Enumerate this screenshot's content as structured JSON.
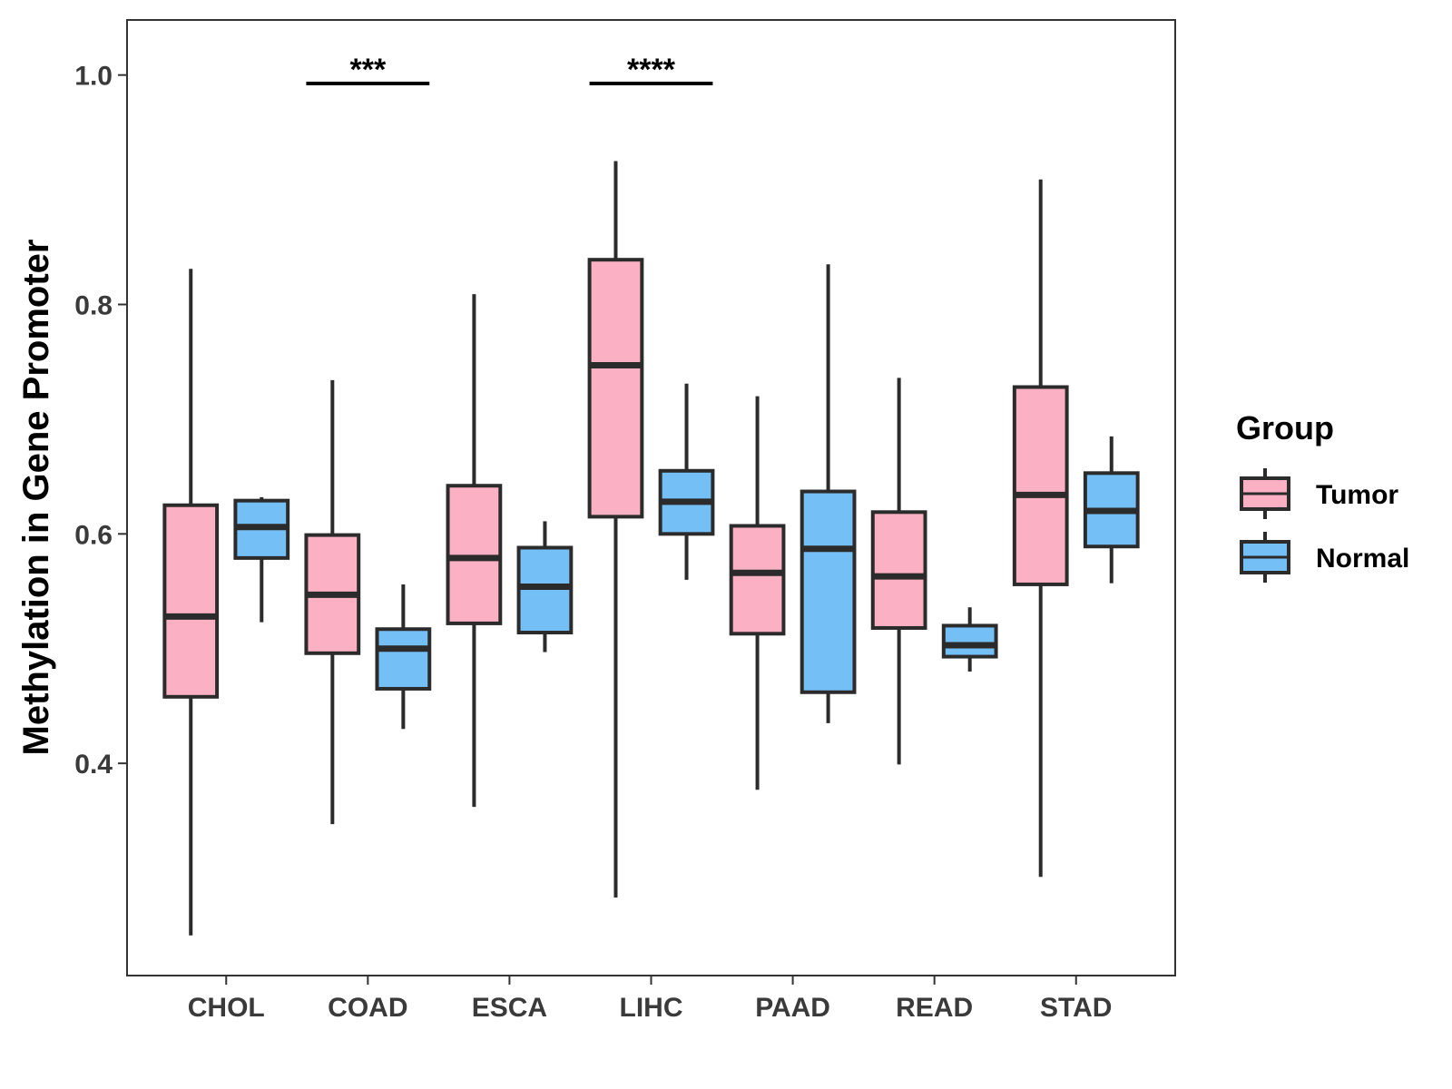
{
  "chart_data": {
    "type": "boxplot",
    "title": "",
    "xlabel": "",
    "ylabel": "Methylation in Gene Promoter",
    "ylim": [
      0.215,
      1.048
    ],
    "yticks": [
      0.4,
      0.6,
      0.8,
      1.0
    ],
    "ytick_labels": [
      "0.4",
      "0.6",
      "0.8",
      "1.0"
    ],
    "categories": [
      "CHOL",
      "COAD",
      "ESCA",
      "LIHC",
      "PAAD",
      "READ",
      "STAD"
    ],
    "grid": false,
    "legend": {
      "title": "Group",
      "position": "right",
      "entries": [
        {
          "name": "Tumor",
          "color": "#fbb1c3"
        },
        {
          "name": "Normal",
          "color": "#75bff7"
        }
      ]
    },
    "series": [
      {
        "name": "Tumor",
        "color": "#fbb1c3",
        "boxes": [
          {
            "min": 0.25,
            "q1": 0.458,
            "median": 0.528,
            "q3": 0.625,
            "max": 0.831
          },
          {
            "min": 0.347,
            "q1": 0.496,
            "median": 0.547,
            "q3": 0.599,
            "max": 0.734
          },
          {
            "min": 0.362,
            "q1": 0.522,
            "median": 0.579,
            "q3": 0.642,
            "max": 0.809
          },
          {
            "min": 0.283,
            "q1": 0.615,
            "median": 0.747,
            "q3": 0.839,
            "max": 0.925
          },
          {
            "min": 0.377,
            "q1": 0.513,
            "median": 0.566,
            "q3": 0.607,
            "max": 0.72
          },
          {
            "min": 0.399,
            "q1": 0.518,
            "median": 0.563,
            "q3": 0.619,
            "max": 0.736
          },
          {
            "min": 0.301,
            "q1": 0.556,
            "median": 0.634,
            "q3": 0.728,
            "max": 0.909
          }
        ]
      },
      {
        "name": "Normal",
        "color": "#75bff7",
        "boxes": [
          {
            "min": 0.523,
            "q1": 0.579,
            "median": 0.606,
            "q3": 0.629,
            "max": 0.632
          },
          {
            "min": 0.43,
            "q1": 0.465,
            "median": 0.5,
            "q3": 0.517,
            "max": 0.556
          },
          {
            "min": 0.497,
            "q1": 0.514,
            "median": 0.554,
            "q3": 0.588,
            "max": 0.611
          },
          {
            "min": 0.56,
            "q1": 0.6,
            "median": 0.628,
            "q3": 0.655,
            "max": 0.731
          },
          {
            "min": 0.435,
            "q1": 0.462,
            "median": 0.587,
            "q3": 0.637,
            "max": 0.835
          },
          {
            "min": 0.48,
            "q1": 0.493,
            "median": 0.503,
            "q3": 0.52,
            "max": 0.536
          },
          {
            "min": 0.557,
            "q1": 0.589,
            "median": 0.62,
            "q3": 0.653,
            "max": 0.685
          }
        ]
      }
    ],
    "annotations": [
      {
        "category": "COAD",
        "text": "***"
      },
      {
        "category": "LIHC",
        "text": "****"
      }
    ]
  }
}
